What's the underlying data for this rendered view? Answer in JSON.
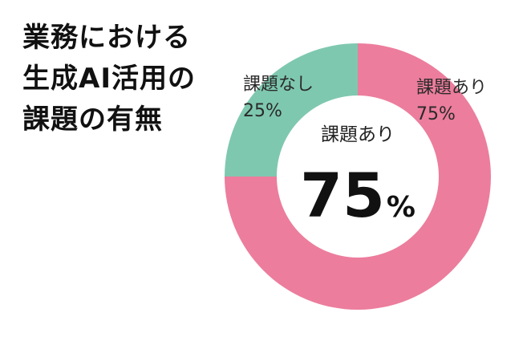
{
  "title_lines": [
    "業務における",
    "生成AI活用の",
    "課題の有無"
  ],
  "chart_data": {
    "type": "pie",
    "variant": "donut",
    "start": "top",
    "direction": "clockwise",
    "slices": [
      {
        "label": "課題あり",
        "value": 75,
        "value_label": "75%",
        "color": "#ec7d9d"
      },
      {
        "label": "課題なし",
        "value": 25,
        "value_label": "25%",
        "color": "#7fc8b0"
      }
    ],
    "center": {
      "label": "課題あり",
      "value": "75",
      "unit": "%"
    },
    "legend": "none"
  }
}
